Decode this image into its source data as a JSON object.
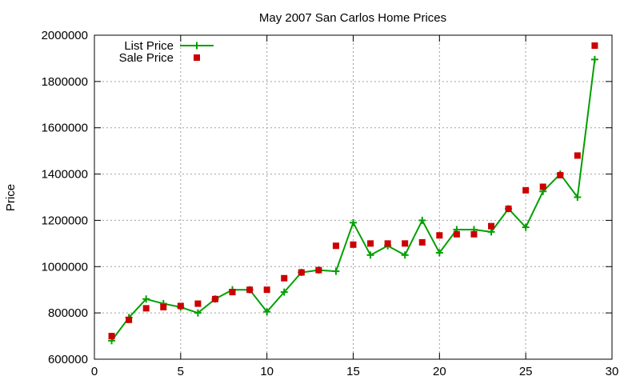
{
  "chart_data": {
    "type": "line",
    "title": "May 2007 San Carlos Home Prices",
    "xlabel": "",
    "ylabel": "Price",
    "xlim": [
      0,
      30
    ],
    "ylim": [
      600000,
      2000000
    ],
    "x_ticks": [
      0,
      5,
      10,
      15,
      20,
      25,
      30
    ],
    "y_ticks": [
      600000,
      800000,
      1000000,
      1200000,
      1400000,
      1600000,
      1800000,
      2000000
    ],
    "grid": true,
    "legend_position": "top-left",
    "x": [
      1,
      2,
      3,
      4,
      5,
      6,
      7,
      8,
      9,
      10,
      11,
      12,
      13,
      14,
      15,
      16,
      17,
      18,
      19,
      20,
      21,
      22,
      23,
      24,
      25,
      26,
      27,
      28,
      29
    ],
    "series": [
      {
        "name": "List Price",
        "style": "line-with-plus-markers",
        "color": "#00a000",
        "values": [
          680000,
          780000,
          860000,
          840000,
          825000,
          800000,
          860000,
          900000,
          900000,
          805000,
          890000,
          975000,
          985000,
          980000,
          1190000,
          1050000,
          1090000,
          1050000,
          1200000,
          1060000,
          1160000,
          1160000,
          1150000,
          1250000,
          1170000,
          1325000,
          1400000,
          1300000,
          1895000
        ]
      },
      {
        "name": "Sale Price",
        "style": "square-markers",
        "color": "#cc0000",
        "values": [
          700000,
          770000,
          820000,
          825000,
          830000,
          840000,
          860000,
          890000,
          900000,
          900000,
          950000,
          975000,
          985000,
          1090000,
          1095000,
          1100000,
          1100000,
          1100000,
          1105000,
          1135000,
          1140000,
          1140000,
          1175000,
          1250000,
          1330000,
          1345000,
          1395000,
          1480000,
          1955000
        ]
      }
    ]
  }
}
